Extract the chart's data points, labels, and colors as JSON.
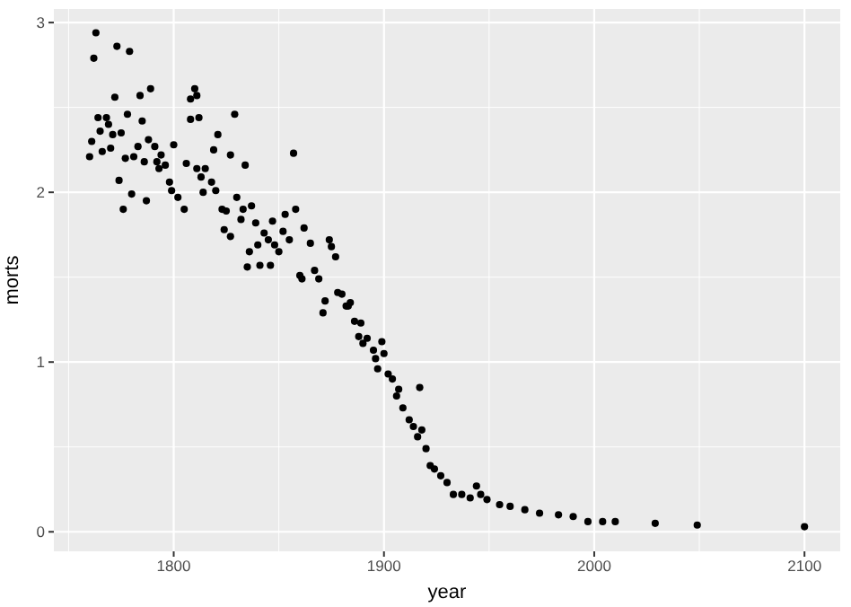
{
  "chart_data": {
    "type": "scatter",
    "xlabel": "year",
    "ylabel": "morts",
    "xlim": [
      1743,
      2117
    ],
    "xticks": [
      1800,
      1900,
      2000,
      2100
    ],
    "ylim": [
      -0.115,
      3.08
    ],
    "yticks": [
      0,
      1,
      2,
      3
    ],
    "grid": true,
    "marker": "circle",
    "series": [
      {
        "color": "#000000",
        "x": [
          1763,
          1762,
          1773,
          1779,
          1772,
          1784,
          1789,
          1764,
          1768,
          1778,
          1785,
          1761,
          1765,
          1769,
          1771,
          1775,
          1760,
          1766,
          1770,
          1777,
          1781,
          1783,
          1788,
          1791,
          1774,
          1780,
          1776,
          1787,
          1786,
          1792,
          1794,
          1796,
          1800,
          1793,
          1798,
          1799,
          1802,
          1805,
          1806,
          1808,
          1810,
          1811,
          1808,
          1812,
          1811,
          1813,
          1815,
          1818,
          1814,
          1819,
          1821,
          1827,
          1829,
          1834,
          1857,
          1820,
          1823,
          1825,
          1830,
          1833,
          1837,
          1824,
          1827,
          1832,
          1839,
          1843,
          1847,
          1853,
          1858,
          1852,
          1855,
          1862,
          1845,
          1848,
          1840,
          1836,
          1835,
          1841,
          1846,
          1850,
          1865,
          1860,
          1867,
          1874,
          1875,
          1877,
          1861,
          1869,
          1872,
          1871,
          1878,
          1880,
          1882,
          1884,
          1883,
          1886,
          1889,
          1888,
          1892,
          1890,
          1899,
          1900,
          1895,
          1896,
          1897,
          1902,
          1904,
          1907,
          1917,
          1906,
          1909,
          1912,
          1914,
          1918,
          1916,
          1920,
          1922,
          1924,
          1927,
          1930,
          1933,
          1937,
          1941,
          1944,
          1946,
          1949,
          1955,
          1960,
          1967,
          1974,
          1983,
          1990,
          1997,
          2004,
          2010,
          2029,
          2049,
          2100
        ],
        "values": [
          2.94,
          2.79,
          2.86,
          2.83,
          2.56,
          2.57,
          2.61,
          2.44,
          2.44,
          2.46,
          2.42,
          2.3,
          2.36,
          2.4,
          2.34,
          2.35,
          2.21,
          2.24,
          2.26,
          2.2,
          2.21,
          2.27,
          2.31,
          2.27,
          2.07,
          1.99,
          1.9,
          1.95,
          2.18,
          2.18,
          2.22,
          2.16,
          2.28,
          2.14,
          2.06,
          2.01,
          1.97,
          1.9,
          2.17,
          2.55,
          2.61,
          2.57,
          2.43,
          2.44,
          2.14,
          2.09,
          2.14,
          2.06,
          2.0,
          2.25,
          2.34,
          2.22,
          2.46,
          2.16,
          2.23,
          2.01,
          1.9,
          1.89,
          1.97,
          1.9,
          1.92,
          1.78,
          1.74,
          1.84,
          1.82,
          1.76,
          1.83,
          1.87,
          1.9,
          1.77,
          1.72,
          1.79,
          1.72,
          1.69,
          1.69,
          1.65,
          1.56,
          1.57,
          1.57,
          1.65,
          1.7,
          1.51,
          1.54,
          1.72,
          1.68,
          1.62,
          1.49,
          1.49,
          1.36,
          1.29,
          1.41,
          1.4,
          1.33,
          1.35,
          1.33,
          1.24,
          1.23,
          1.15,
          1.14,
          1.11,
          1.12,
          1.05,
          1.07,
          1.02,
          0.96,
          0.93,
          0.9,
          0.84,
          0.85,
          0.8,
          0.73,
          0.66,
          0.62,
          0.6,
          0.56,
          0.49,
          0.39,
          0.37,
          0.33,
          0.29,
          0.22,
          0.22,
          0.2,
          0.27,
          0.22,
          0.19,
          0.16,
          0.15,
          0.13,
          0.11,
          0.1,
          0.09,
          0.06,
          0.06,
          0.06,
          0.05,
          0.04,
          0.03
        ]
      }
    ]
  }
}
